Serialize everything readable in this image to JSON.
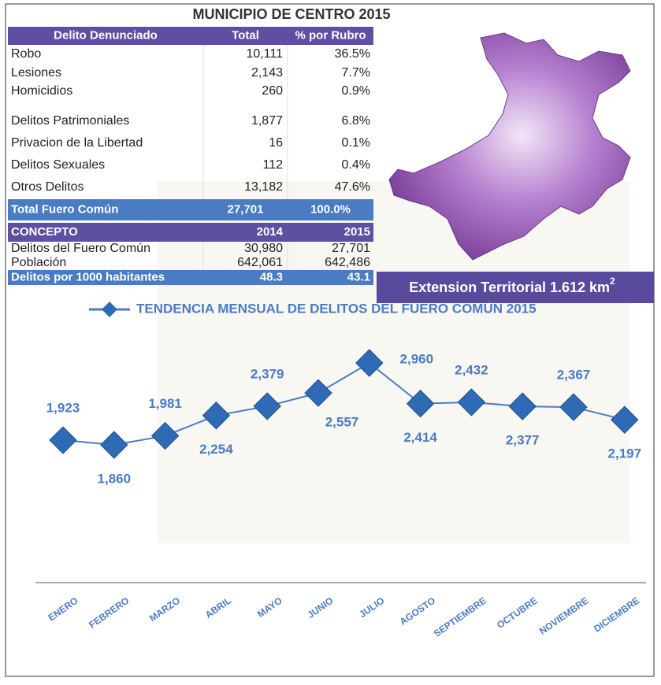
{
  "title": "MUNICIPIO DE CENTRO 2015",
  "table": {
    "header": [
      "Delito Denunciado",
      "Total",
      "% por Rubro"
    ],
    "rows": [
      [
        "Robo",
        "10,111",
        "36.5%"
      ],
      [
        "Lesiones",
        "2,143",
        "7.7%"
      ],
      [
        "Homicidios",
        "260",
        "0.9%"
      ],
      [
        "Delitos Patrimoniales",
        "1,877",
        "6.8%"
      ],
      [
        "Privacion de la Libertad",
        "16",
        "0.1%"
      ],
      [
        "Delitos Sexuales",
        "112",
        "0.4%"
      ],
      [
        "Otros Delitos",
        "13,182",
        "47.6%"
      ]
    ],
    "total": [
      "Total Fuero Común",
      "27,701",
      "100.0%"
    ]
  },
  "concept_table": {
    "header": [
      "CONCEPTO",
      "2014",
      "2015"
    ],
    "rows": [
      [
        "Delitos del Fuero Común",
        "30,980",
        "27,701"
      ],
      [
        "Población",
        "642,061",
        "642,486"
      ]
    ],
    "total": [
      "Delitos por 1000 habitantes",
      "48.3",
      "43.1"
    ]
  },
  "extension": {
    "text": "Extension Territorial 1.612 km",
    "superscript": "2"
  },
  "chart_data": {
    "type": "line",
    "categories": [
      "ENERO",
      "FEBRERO",
      "MARZO",
      "ABRIL",
      "MAYO",
      "JUNIO",
      "JULIO",
      "AGOSTO",
      "SEPTIEMBRE",
      "OCTUBRE",
      "NOVIEMBRE",
      "DICIEMBRE"
    ],
    "series": [
      {
        "name": "TENDENCIA MENSUAL DE DELITOS DEL FUERO COMÚN 2015",
        "color": "#4a7cc4",
        "values": [
          1923,
          1860,
          1981,
          2254,
          2379,
          2557,
          2960,
          2414,
          2432,
          2377,
          2367,
          2197
        ],
        "value_labels": [
          "1,923",
          "1,860",
          "1,981",
          "2,254",
          "2,379",
          "2,557",
          "2,960",
          "2,414",
          "2,432",
          "2,377",
          "2,367",
          "2,197"
        ]
      }
    ]
  }
}
